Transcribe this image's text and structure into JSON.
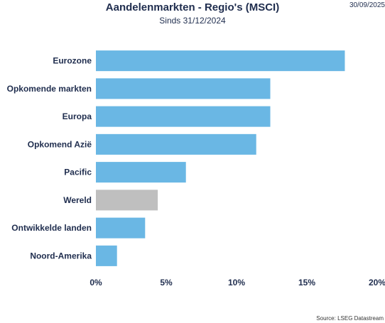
{
  "header": {
    "title": "Aandelenmarkten - Regio's (MSCI)",
    "subtitle": "Sinds 31/12/2024",
    "date": "30/09/2025"
  },
  "footer": {
    "source": "Source: LSEG Datastream"
  },
  "chart_data": {
    "type": "bar",
    "orientation": "horizontal",
    "title": "Aandelenmarkten - Regio's (MSCI)",
    "subtitle": "Sinds 31/12/2024",
    "categories": [
      "Eurozone",
      "Opkomende markten",
      "Europa",
      "Opkomend Azië",
      "Pacific",
      "Wereld",
      "Ontwikkelde landen",
      "Noord-Amerika"
    ],
    "values": [
      17.7,
      12.4,
      12.4,
      11.4,
      6.4,
      4.4,
      3.5,
      1.5
    ],
    "bar_colors": [
      "#6ab7e4",
      "#6ab7e4",
      "#6ab7e4",
      "#6ab7e4",
      "#6ab7e4",
      "#bfbfbf",
      "#6ab7e4",
      "#6ab7e4"
    ],
    "xlim": [
      0,
      20
    ],
    "xticks": [
      0,
      5,
      10,
      15,
      20
    ],
    "xtick_labels": [
      "0%",
      "5%",
      "10%",
      "15%",
      "20%"
    ],
    "xlabel": "",
    "ylabel": "",
    "grid": false,
    "legend": "none"
  },
  "colors": {
    "primary_bar": "#6ab7e4",
    "highlight_bar": "#bfbfbf",
    "text": "#1f2d4e"
  }
}
